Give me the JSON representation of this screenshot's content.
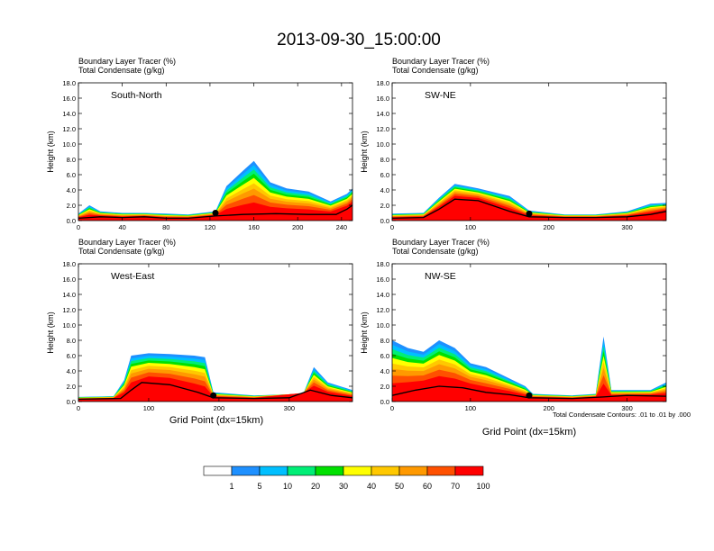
{
  "title": "2013-09-30_15:00:00",
  "subtitle_line1": "Boundary Layer Tracer   (%)",
  "subtitle_line2": "Total Condensate   (g/kg)",
  "ylabel": "Height (km)",
  "xlabel": "Grid Point (dx=15km)",
  "contour_note": "Total Condensate Contours: .01 to .01 by .000",
  "y_ticks": [
    "0.0",
    "2.0",
    "4.0",
    "6.0",
    "8.0",
    "10.0",
    "12.0",
    "14.0",
    "16.0",
    "18.0"
  ],
  "colorbar": {
    "labels": [
      "1",
      "5",
      "10",
      "20",
      "30",
      "40",
      "50",
      "60",
      "70",
      "100"
    ],
    "colors": [
      "#ffffff",
      "#1e90ff",
      "#00bfff",
      "#00e5ee",
      "#00ee76",
      "#00e000",
      "#9aff32",
      "#ffff00",
      "#ffc800",
      "#ff9900",
      "#ff5000",
      "#ff0000"
    ]
  },
  "chart_data": [
    {
      "type": "heatmap",
      "panel_label": "South-North",
      "xlim": [
        0,
        250
      ],
      "ylim": [
        0,
        18
      ],
      "x_ticks": [
        "0",
        "40",
        "80",
        "120",
        "160",
        "200",
        "240"
      ],
      "x_tick_values": [
        0,
        40,
        80,
        120,
        160,
        200,
        240
      ],
      "marker_x": 125,
      "marker_y": 1.0,
      "terrain": [
        [
          0,
          0.3
        ],
        [
          20,
          0.5
        ],
        [
          40,
          0.4
        ],
        [
          60,
          0.5
        ],
        [
          80,
          0.3
        ],
        [
          100,
          0.3
        ],
        [
          125,
          0.6
        ],
        [
          150,
          0.8
        ],
        [
          180,
          0.9
        ],
        [
          210,
          0.8
        ],
        [
          235,
          0.8
        ],
        [
          245,
          1.5
        ],
        [
          250,
          2.0
        ]
      ],
      "tracer_top": [
        [
          0,
          0.9
        ],
        [
          10,
          2.0
        ],
        [
          20,
          1.2
        ],
        [
          40,
          1.0
        ],
        [
          60,
          1.0
        ],
        [
          80,
          0.9
        ],
        [
          100,
          0.8
        ],
        [
          125,
          1.2
        ],
        [
          135,
          4.5
        ],
        [
          150,
          6.5
        ],
        [
          160,
          7.8
        ],
        [
          175,
          5.0
        ],
        [
          190,
          4.2
        ],
        [
          210,
          3.8
        ],
        [
          230,
          2.5
        ],
        [
          245,
          3.5
        ],
        [
          250,
          4.2
        ]
      ]
    },
    {
      "type": "heatmap",
      "panel_label": "SW-NE",
      "xlim": [
        0,
        350
      ],
      "ylim": [
        0,
        18
      ],
      "x_ticks": [
        "0",
        "100",
        "200",
        "300"
      ],
      "x_tick_values": [
        0,
        100,
        200,
        300
      ],
      "marker_x": 175,
      "marker_y": 0.9,
      "terrain": [
        [
          0,
          0.3
        ],
        [
          40,
          0.4
        ],
        [
          60,
          1.5
        ],
        [
          80,
          2.8
        ],
        [
          110,
          2.6
        ],
        [
          150,
          1.2
        ],
        [
          175,
          0.5
        ],
        [
          220,
          0.4
        ],
        [
          260,
          0.4
        ],
        [
          300,
          0.5
        ],
        [
          330,
          0.8
        ],
        [
          350,
          1.2
        ]
      ],
      "tracer_top": [
        [
          0,
          0.9
        ],
        [
          40,
          1.0
        ],
        [
          60,
          3.0
        ],
        [
          80,
          4.8
        ],
        [
          110,
          4.2
        ],
        [
          150,
          3.2
        ],
        [
          175,
          1.3
        ],
        [
          220,
          0.8
        ],
        [
          260,
          0.8
        ],
        [
          300,
          1.2
        ],
        [
          330,
          2.2
        ],
        [
          350,
          2.3
        ]
      ]
    },
    {
      "type": "heatmap",
      "panel_label": "West-East",
      "xlim": [
        0,
        390
      ],
      "ylim": [
        0,
        18
      ],
      "x_ticks": [
        "0",
        "100",
        "200",
        "300"
      ],
      "x_tick_values": [
        0,
        100,
        200,
        300
      ],
      "marker_x": 192,
      "marker_y": 0.8,
      "terrain": [
        [
          0,
          0.3
        ],
        [
          60,
          0.4
        ],
        [
          75,
          1.5
        ],
        [
          90,
          2.5
        ],
        [
          130,
          2.2
        ],
        [
          170,
          1.2
        ],
        [
          192,
          0.5
        ],
        [
          250,
          0.4
        ],
        [
          300,
          0.5
        ],
        [
          330,
          1.5
        ],
        [
          360,
          0.8
        ],
        [
          390,
          0.5
        ]
      ],
      "tracer_top": [
        [
          0,
          0.6
        ],
        [
          50,
          0.7
        ],
        [
          65,
          2.8
        ],
        [
          75,
          6.0
        ],
        [
          100,
          6.3
        ],
        [
          130,
          6.2
        ],
        [
          165,
          6.0
        ],
        [
          180,
          5.8
        ],
        [
          192,
          1.2
        ],
        [
          250,
          0.8
        ],
        [
          320,
          1.0
        ],
        [
          335,
          4.5
        ],
        [
          355,
          2.5
        ],
        [
          390,
          1.5
        ]
      ]
    },
    {
      "type": "heatmap",
      "panel_label": "NW-SE",
      "xlim": [
        0,
        350
      ],
      "ylim": [
        0,
        18
      ],
      "x_ticks": [
        "0",
        "100",
        "200",
        "300"
      ],
      "x_tick_values": [
        0,
        100,
        200,
        300
      ],
      "marker_x": 175,
      "marker_y": 0.8,
      "terrain": [
        [
          0,
          0.8
        ],
        [
          30,
          1.5
        ],
        [
          60,
          2.0
        ],
        [
          90,
          1.8
        ],
        [
          120,
          1.2
        ],
        [
          150,
          0.9
        ],
        [
          175,
          0.5
        ],
        [
          230,
          0.4
        ],
        [
          270,
          0.6
        ],
        [
          300,
          0.8
        ],
        [
          350,
          0.7
        ]
      ],
      "tracer_top": [
        [
          0,
          8.0
        ],
        [
          20,
          7.0
        ],
        [
          40,
          6.5
        ],
        [
          60,
          8.0
        ],
        [
          80,
          7.0
        ],
        [
          100,
          5.0
        ],
        [
          120,
          4.5
        ],
        [
          150,
          3.0
        ],
        [
          170,
          2.0
        ],
        [
          180,
          1.0
        ],
        [
          230,
          0.8
        ],
        [
          260,
          1.0
        ],
        [
          270,
          8.5
        ],
        [
          280,
          1.5
        ],
        [
          330,
          1.5
        ],
        [
          350,
          2.5
        ]
      ]
    }
  ]
}
